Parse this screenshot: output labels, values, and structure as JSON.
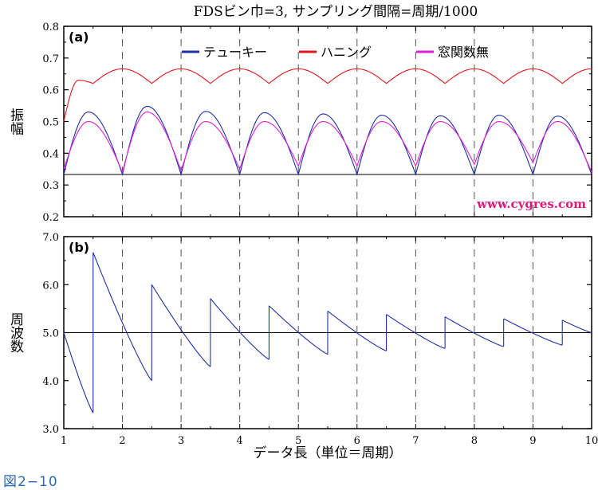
{
  "figure_caption": "図2−10",
  "colors": {
    "tukey": "#1f2fa8",
    "hanning": "#e0181d",
    "none": "#e020d0",
    "watermark": "#e0187a",
    "axis": "#000000",
    "dashed": "#555555"
  },
  "chart_data": [
    {
      "type": "line",
      "panel_label": "(a)",
      "title": "FDSビン巾=3, サンプリング間隔=周期/1000",
      "xlabel": "",
      "ylabel": "振幅",
      "xlim": [
        1,
        10
      ],
      "ylim": [
        0.2,
        0.8
      ],
      "x_ticks": [],
      "y_ticks": [
        "0.2",
        "0.3",
        "0.4",
        "0.5",
        "0.6",
        "0.7",
        "0.8"
      ],
      "y_tick_values": [
        0.2,
        0.3,
        0.4,
        0.5,
        0.6,
        0.7,
        0.8
      ],
      "reference_line_y": 0.333,
      "vertical_dashed_x": [
        2,
        3,
        4,
        5,
        6,
        7,
        8,
        9
      ],
      "legend_placement": "top",
      "annotation": "www.cygres.com",
      "series": [
        {
          "name": "テューキー",
          "color_key": "tukey",
          "x": [
            1.0,
            1.5,
            2.0,
            2.5,
            3.0,
            3.5,
            4.0,
            4.5,
            5.0,
            5.5,
            6.0,
            6.5,
            7.0,
            7.5,
            8.0,
            8.5,
            9.0,
            9.5,
            10.0
          ],
          "y": [
            0.333,
            0.53,
            0.333,
            0.548,
            0.333,
            0.532,
            0.333,
            0.528,
            0.333,
            0.524,
            0.333,
            0.52,
            0.333,
            0.518,
            0.333,
            0.52,
            0.333,
            0.517,
            0.333
          ]
        },
        {
          "name": "ハニング",
          "color_key": "hanning",
          "x": [
            1.0,
            1.25,
            1.5,
            2.0,
            2.5,
            3.0,
            3.5,
            4.0,
            4.5,
            5.0,
            5.5,
            6.0,
            6.5,
            7.0,
            7.5,
            8.0,
            8.5,
            9.0,
            9.5,
            10.0
          ],
          "y": [
            0.5,
            0.63,
            0.62,
            0.666,
            0.62,
            0.666,
            0.62,
            0.666,
            0.62,
            0.666,
            0.62,
            0.666,
            0.62,
            0.666,
            0.62,
            0.666,
            0.62,
            0.666,
            0.62,
            0.666
          ]
        },
        {
          "name": "窓関数無",
          "color_key": "none",
          "x": [
            1.0,
            1.5,
            2.0,
            2.5,
            3.0,
            3.5,
            4.0,
            4.5,
            5.0,
            5.5,
            6.0,
            6.5,
            7.0,
            7.5,
            8.0,
            8.5,
            9.0,
            9.5,
            10.0
          ],
          "y": [
            0.35,
            0.5,
            0.34,
            0.53,
            0.345,
            0.5,
            0.35,
            0.5,
            0.36,
            0.5,
            0.36,
            0.5,
            0.36,
            0.5,
            0.365,
            0.5,
            0.37,
            0.5,
            0.34
          ]
        }
      ]
    },
    {
      "type": "line",
      "panel_label": "(b)",
      "title": "",
      "xlabel": "データ長（単位＝周期）",
      "ylabel": "周波数",
      "xlim": [
        1,
        10
      ],
      "ylim": [
        3.0,
        7.0
      ],
      "x_ticks": [
        "1",
        "2",
        "3",
        "4",
        "5",
        "6",
        "7",
        "8",
        "9",
        "10"
      ],
      "x_tick_values": [
        1,
        2,
        3,
        4,
        5,
        6,
        7,
        8,
        9,
        10
      ],
      "y_ticks": [
        "3.0",
        "4.0",
        "5.0",
        "6.0",
        "7.0"
      ],
      "y_tick_values": [
        3.0,
        4.0,
        5.0,
        6.0,
        7.0
      ],
      "reference_line_y": 5.0,
      "vertical_dashed_x": [
        2,
        3,
        4,
        5,
        6,
        7,
        8,
        9
      ],
      "series": [
        {
          "name": "",
          "color_key": "tukey",
          "segments": [
            [
              [
                1.0,
                5.0
              ],
              [
                1.5,
                3.33
              ]
            ],
            [
              [
                1.5,
                6.67
              ],
              [
                2.5,
                4.0
              ]
            ],
            [
              [
                2.5,
                6.0
              ],
              [
                3.5,
                4.29
              ]
            ],
            [
              [
                3.5,
                5.71
              ],
              [
                4.5,
                4.44
              ]
            ],
            [
              [
                4.5,
                5.56
              ],
              [
                5.5,
                4.55
              ]
            ],
            [
              [
                5.5,
                5.45
              ],
              [
                6.5,
                4.62
              ]
            ],
            [
              [
                6.5,
                5.38
              ],
              [
                7.5,
                4.67
              ]
            ],
            [
              [
                7.5,
                5.33
              ],
              [
                8.5,
                4.71
              ]
            ],
            [
              [
                8.5,
                5.29
              ],
              [
                9.5,
                4.74
              ]
            ],
            [
              [
                9.5,
                5.26
              ],
              [
                10.0,
                5.0
              ]
            ]
          ]
        }
      ]
    }
  ]
}
